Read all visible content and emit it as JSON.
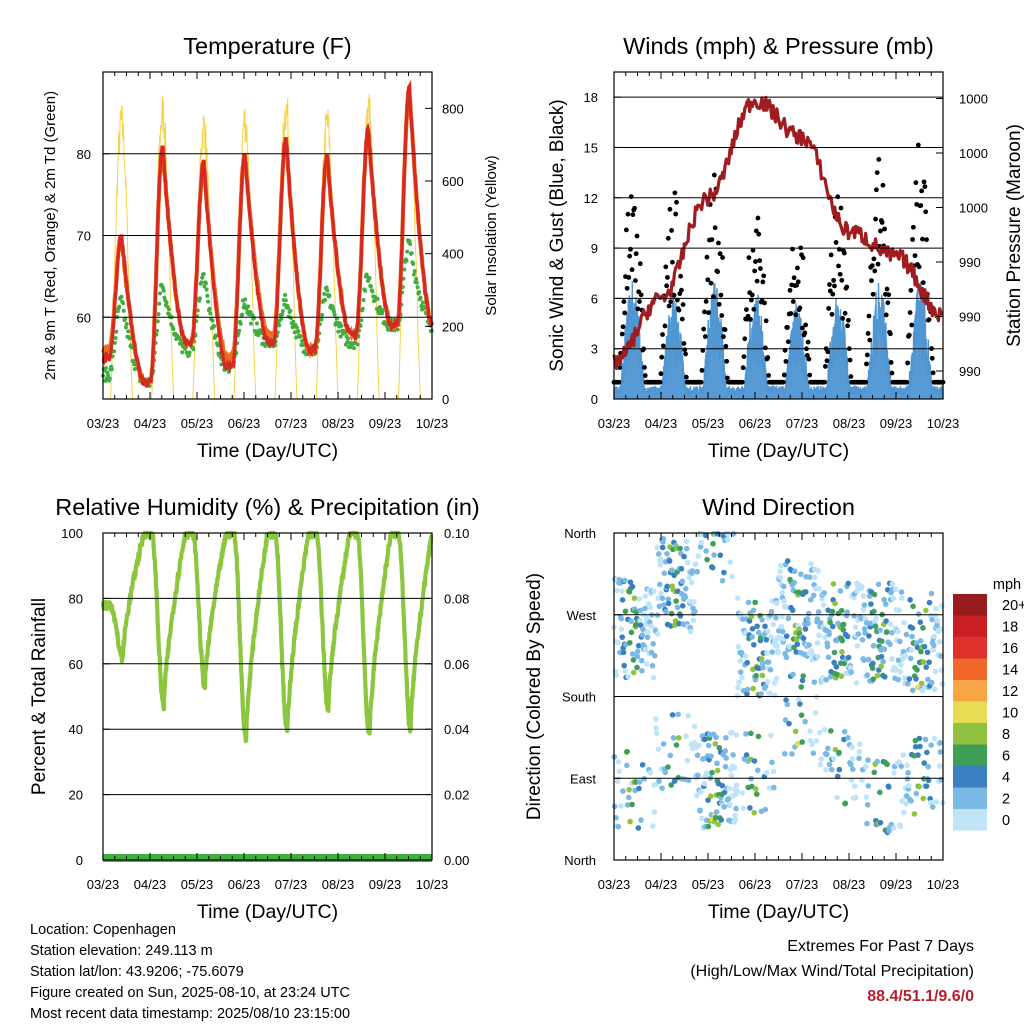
{
  "x_ticks": [
    "03/23",
    "04/23",
    "05/23",
    "06/23",
    "07/23",
    "08/23",
    "09/23",
    "10/23"
  ],
  "colors": {
    "temp_2m": "#d42a22",
    "temp_9m": "#f06a22",
    "dewpoint": "#3fae3f",
    "insolation": "#f6d24a",
    "wind": "#4f96d2",
    "gust": "#000000",
    "pressure": "#a01c20",
    "humidity": "#8cc63f",
    "precip": "#3fae3f",
    "extremes_text": "#b5202a"
  },
  "chart_data": [
    {
      "type": "line",
      "title": "Temperature (F)",
      "xlabel": "Time (Day/UTC)",
      "ylabel": "2m & 9m T (Red, Orange) & 2m Td (Green)",
      "y2label": "Solar Insolation (Yellow)",
      "ylim": [
        50,
        90
      ],
      "yticks": [
        60,
        70,
        80
      ],
      "y2lim": [
        0,
        900
      ],
      "y2ticks": [
        0,
        200,
        400,
        600,
        800
      ],
      "series": [
        {
          "key": "temp_2m",
          "axis": "left",
          "daily_min": [
            55,
            52,
            57,
            54,
            57,
            56,
            58,
            59
          ],
          "daily_max": [
            70,
            81,
            79,
            80,
            82,
            80,
            83,
            88
          ]
        },
        {
          "key": "temp_9m",
          "axis": "left",
          "daily_min": [
            56,
            52,
            57,
            55,
            58,
            56,
            58,
            59
          ],
          "daily_max": [
            70,
            81,
            79,
            80,
            82,
            80,
            83,
            88
          ]
        },
        {
          "key": "dewpoint",
          "axis": "left",
          "daily_min": [
            53,
            52,
            56,
            54,
            57,
            56,
            57,
            59
          ],
          "daily_max": [
            62,
            64,
            65,
            62,
            62,
            63,
            65,
            69
          ]
        },
        {
          "key": "insolation",
          "axis": "right",
          "daily_peak": [
            820,
            850,
            810,
            830,
            860,
            820,
            870,
            850
          ]
        }
      ]
    },
    {
      "type": "line",
      "title": "Winds (mph) & Pressure (mb)",
      "xlabel": "Time (Day/UTC)",
      "ylabel": "Sonic Wind & Gust (Blue, Black)",
      "y2label": "Station Pressure (Maroon)",
      "ylim": [
        0,
        19.5
      ],
      "yticks": [
        0,
        3,
        6,
        9,
        12,
        15,
        18
      ],
      "y2ticklabels": [
        "990",
        "990",
        "990",
        "1000",
        "1000",
        "1000"
      ],
      "series": [
        {
          "key": "wind",
          "type": "area",
          "daily_peak": [
            9,
            8,
            9,
            8,
            7,
            8,
            9,
            9
          ]
        },
        {
          "key": "gust",
          "type": "scatter",
          "daily_peak": [
            14,
            14,
            15,
            13,
            12,
            13,
            16,
            17
          ]
        },
        {
          "key": "pressure",
          "type": "line",
          "y_index": [
            2.2,
            6,
            12,
            17.8,
            15.6,
            10,
            8.5,
            5
          ]
        }
      ]
    },
    {
      "type": "line",
      "title": "Relative Humidity (%) & Precipitation (in)",
      "xlabel": "Time (Day/UTC)",
      "ylabel": "Percent & Total Rainfall",
      "ylim": [
        0,
        100
      ],
      "yticks": [
        0,
        20,
        40,
        60,
        80,
        100
      ],
      "y2ticks": [
        "0.00",
        "0.02",
        "0.04",
        "0.06",
        "0.08",
        "0.10"
      ],
      "series": [
        {
          "key": "humidity",
          "daily_min": [
            62,
            47,
            53,
            37,
            39,
            46,
            38,
            40
          ],
          "daily_max": [
            78,
            100,
            100,
            100,
            100,
            100,
            100,
            100
          ]
        },
        {
          "key": "precip",
          "values": [
            0,
            0,
            0,
            0,
            0,
            0,
            0,
            0
          ]
        }
      ]
    },
    {
      "type": "scatter",
      "title": "Wind Direction",
      "xlabel": "Time (Day/UTC)",
      "ylabel": "Direction (Colored By Speed)",
      "yticks": [
        "North",
        "East",
        "South",
        "West",
        "North"
      ],
      "legend": {
        "title": "mph",
        "labels": [
          "20+",
          "18",
          "16",
          "14",
          "12",
          "10",
          "8",
          "6",
          "4",
          "2",
          "0"
        ],
        "colors": [
          "#9a1b1e",
          "#c81e24",
          "#e0302a",
          "#f2672a",
          "#f8a545",
          "#e6dd55",
          "#8fc23f",
          "#3f9f56",
          "#3a7fc0",
          "#7ab9e5",
          "#bfe4f7"
        ]
      }
    }
  ],
  "info": {
    "location": "Location: Copenhagen",
    "elevation": "Station elevation: 249.113 m",
    "latlon": "Station lat/lon: 43.9206; -75.6079",
    "created": "Figure created on Sun, 2025-08-10, at 23:24 UTC",
    "timestamp": "Most recent data timestamp: 2025/08/10 23:15:00"
  },
  "extremes": {
    "title": "Extremes For Past 7 Days",
    "subtitle": "(High/Low/Max Wind/Total Precipitation)",
    "values": "88.4/51.1/9.6/0"
  }
}
